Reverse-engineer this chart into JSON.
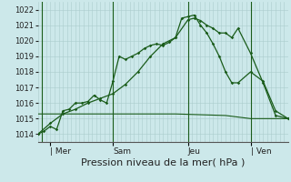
{
  "bg_color": "#cce8ea",
  "grid_color": "#aacccc",
  "line_color": "#1a5c1a",
  "xlabel": "Pression niveau de la mer( hPa )",
  "ylim": [
    1013.5,
    1022.5
  ],
  "yticks": [
    1014,
    1015,
    1016,
    1017,
    1018,
    1019,
    1020,
    1021,
    1022
  ],
  "day_labels": [
    "| Mer",
    "Sam",
    "Jeu",
    "| Ven"
  ],
  "day_positions": [
    0.5,
    3.0,
    6.0,
    8.5
  ],
  "xlim": [
    0,
    10
  ],
  "line1_x": [
    0.0,
    0.25,
    0.5,
    0.75,
    1.0,
    1.25,
    1.5,
    1.75,
    2.0,
    2.25,
    2.5,
    2.75,
    3.0,
    3.25,
    3.5,
    3.75,
    4.0,
    4.25,
    4.5,
    4.75,
    5.0,
    5.25,
    5.5,
    5.75,
    6.0,
    6.25,
    6.5,
    6.75,
    7.0,
    7.25,
    7.5,
    7.75,
    8.0,
    8.5,
    9.0,
    9.5,
    10.0
  ],
  "line1_y": [
    1014.0,
    1014.2,
    1014.5,
    1014.3,
    1015.5,
    1015.6,
    1016.0,
    1016.0,
    1016.1,
    1016.5,
    1016.2,
    1016.0,
    1017.4,
    1019.0,
    1018.8,
    1019.0,
    1019.2,
    1019.5,
    1019.7,
    1019.8,
    1019.7,
    1019.9,
    1020.2,
    1021.45,
    1021.55,
    1021.65,
    1021.0,
    1020.5,
    1019.8,
    1019.0,
    1018.0,
    1017.3,
    1017.3,
    1018.0,
    1017.4,
    1015.5,
    1015.0
  ],
  "line2_x": [
    0.0,
    0.5,
    1.0,
    1.5,
    2.0,
    2.5,
    3.0,
    3.5,
    4.0,
    4.5,
    5.0,
    5.5,
    6.0,
    6.25,
    6.5,
    6.75,
    7.0,
    7.25,
    7.5,
    7.75,
    8.0,
    8.5,
    9.0,
    9.5,
    10.0
  ],
  "line2_y": [
    1014.0,
    1014.7,
    1015.3,
    1015.6,
    1016.0,
    1016.3,
    1016.6,
    1017.2,
    1018.0,
    1019.0,
    1019.8,
    1020.2,
    1021.35,
    1021.45,
    1021.3,
    1021.0,
    1020.8,
    1020.5,
    1020.5,
    1020.2,
    1020.8,
    1019.2,
    1017.3,
    1015.2,
    1015.0
  ],
  "line3_x": [
    0.0,
    2.0,
    5.5,
    7.5,
    8.5,
    10.0
  ],
  "line3_y": [
    1015.3,
    1015.3,
    1015.3,
    1015.2,
    1015.0,
    1015.0
  ],
  "vline_positions": [
    0.15,
    3.0,
    6.0,
    8.5
  ],
  "xlabel_fontsize": 8,
  "ytick_fontsize": 6,
  "xtick_fontsize": 6.5
}
